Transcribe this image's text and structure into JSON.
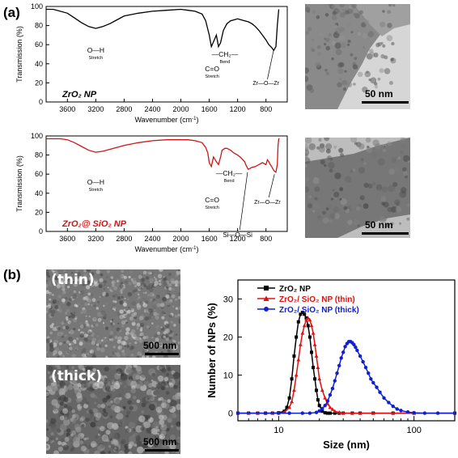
{
  "panels": {
    "a_label": "(a)",
    "b_label": "(b)"
  },
  "ftir_axis": {
    "xlabel": "Wavenumber (cm",
    "xlabel_sup": "-1",
    "xlabel_end": ")",
    "ylabel": "Transmission (%)",
    "xticks": [
      "3600",
      "3200",
      "2800",
      "2400",
      "2000",
      "1600",
      "1200",
      "800"
    ],
    "yticks": [
      "0",
      "20",
      "40",
      "60",
      "80",
      "100"
    ]
  },
  "chart_data": [
    {
      "type": "line",
      "panel": "a-top",
      "color": "#000000",
      "xlabel": "Wavenumber (cm-1)",
      "ylabel": "Transmission (%)",
      "xlim": [
        3900,
        500
      ],
      "ylim": [
        0,
        100
      ],
      "x": [
        3900,
        3800,
        3600,
        3500,
        3400,
        3300,
        3200,
        3100,
        3000,
        2900,
        2800,
        2600,
        2400,
        2200,
        2000,
        1900,
        1800,
        1700,
        1650,
        1600,
        1570,
        1540,
        1500,
        1470,
        1440,
        1400,
        1350,
        1300,
        1250,
        1200,
        1150,
        1100,
        1050,
        1000,
        950,
        900,
        850,
        800,
        760,
        720,
        690,
        660,
        640,
        620
      ],
      "y": [
        97,
        97,
        93,
        88,
        83,
        79,
        77,
        79,
        82,
        86,
        90,
        93,
        95,
        96,
        97,
        96,
        95,
        92,
        85,
        70,
        58,
        63,
        70,
        58,
        62,
        75,
        82,
        85,
        86,
        87,
        86,
        85,
        84,
        82,
        79,
        75,
        70,
        65,
        60,
        57,
        54,
        58,
        80,
        97
      ],
      "annotations": [
        {
          "text": "O—H",
          "sub": "Stretch"
        },
        {
          "text": "C=O",
          "sub": "Stretch"
        },
        {
          "text": "—CH₂—",
          "sub": "Bend"
        },
        {
          "text": "Zr—O—Zr"
        }
      ],
      "legend_html": "ZrO₂ NP"
    },
    {
      "type": "line",
      "panel": "a-bottom",
      "color": "#d01515",
      "xlabel": "Wavenumber (cm-1)",
      "ylabel": "Transmission (%)",
      "xlim": [
        3900,
        500
      ],
      "ylim": [
        0,
        100
      ],
      "x": [
        3900,
        3800,
        3700,
        3600,
        3500,
        3400,
        3300,
        3200,
        3100,
        3000,
        2800,
        2600,
        2400,
        2200,
        2000,
        1900,
        1800,
        1700,
        1650,
        1620,
        1600,
        1570,
        1540,
        1500,
        1470,
        1440,
        1420,
        1380,
        1350,
        1300,
        1250,
        1200,
        1150,
        1100,
        1080,
        1050,
        1000,
        950,
        900,
        850,
        800,
        780,
        760,
        740,
        720,
        700,
        680,
        660,
        640,
        630,
        620,
        610
      ],
      "y": [
        97,
        97,
        97,
        96,
        93,
        89,
        85,
        83,
        84,
        86,
        90,
        93,
        95,
        96,
        96,
        96,
        95,
        93,
        88,
        82,
        72,
        68,
        78,
        73,
        70,
        78,
        85,
        87,
        87,
        85,
        82,
        80,
        77,
        73,
        69,
        65,
        67,
        68,
        70,
        72,
        70,
        75,
        73,
        70,
        68,
        65,
        63,
        62,
        70,
        90,
        97,
        97
      ],
      "annotations": [
        {
          "text": "O—H",
          "sub": "Stretch"
        },
        {
          "text": "C=O",
          "sub": "Stretch"
        },
        {
          "text": "—CH₂—",
          "sub": "Bend"
        },
        {
          "text": "Si—O—Si"
        },
        {
          "text": "Zr—O—Zr"
        }
      ],
      "legend_html": "ZrO₂@ SiO₂ NP"
    },
    {
      "type": "line",
      "panel": "b-right",
      "xlabel": "Size (nm)",
      "ylabel": "Number of NPs (%)",
      "xscale": "log",
      "xlim": [
        5,
        200
      ],
      "ylim": [
        -2,
        35
      ],
      "yticks": [
        0,
        10,
        20,
        30
      ],
      "xticks": [
        10,
        100
      ],
      "series": [
        {
          "name": "ZrO₂ NP",
          "color": "#000000",
          "marker": "square",
          "x": [
            5,
            6,
            7,
            8,
            9,
            10,
            11,
            11.5,
            12,
            12.5,
            13,
            13.5,
            14,
            14.5,
            15,
            15.5,
            16,
            16.5,
            17,
            17.5,
            18,
            18.5,
            19,
            19.5,
            20,
            21,
            22,
            23,
            24,
            26,
            28,
            30,
            35,
            40,
            50,
            70,
            100,
            200
          ],
          "y": [
            0,
            0,
            0,
            0,
            0,
            0.1,
            0.5,
            1.5,
            4,
            9,
            15,
            20,
            24,
            26,
            26.5,
            26,
            25,
            23,
            20,
            16,
            12,
            9,
            6,
            3.5,
            2,
            0.5,
            0.1,
            0,
            0,
            0,
            0,
            0,
            0,
            0,
            0,
            0,
            0,
            0
          ]
        },
        {
          "name": "ZrO₂/ SiO₂ NP (thin)",
          "color": "#e01010",
          "marker": "triangle",
          "x": [
            5,
            6,
            7,
            8,
            9,
            10,
            11,
            12,
            12.5,
            13,
            13.5,
            14,
            14.5,
            15,
            15.5,
            16,
            16.5,
            17,
            17.5,
            18,
            18.5,
            19,
            19.5,
            20,
            21,
            22,
            23,
            24,
            25,
            26,
            28,
            30,
            35,
            40,
            50,
            70,
            100,
            200
          ],
          "y": [
            0,
            0,
            0,
            0,
            0,
            0,
            0.2,
            1.5,
            3,
            6,
            10,
            14,
            18,
            21,
            23,
            24.5,
            25,
            24.5,
            23,
            21,
            18,
            15,
            12,
            9,
            6,
            4,
            2.5,
            1.5,
            1,
            0.5,
            0.2,
            0,
            0,
            0,
            0,
            0,
            0,
            0
          ]
        },
        {
          "name": "ZrO₂/ SiO₂ NP (thick)",
          "color": "#1020d0",
          "marker": "circle",
          "x": [
            5,
            8,
            10,
            12,
            15,
            17,
            19,
            20,
            21,
            22,
            23,
            24,
            25,
            26,
            27,
            28,
            29,
            30,
            31,
            32,
            33,
            34,
            35,
            36,
            37,
            38,
            40,
            42,
            44,
            46,
            48,
            50,
            53,
            56,
            60,
            65,
            70,
            75,
            80,
            90,
            100,
            120,
            150,
            200
          ],
          "y": [
            0,
            0,
            0,
            0,
            0,
            0,
            0.2,
            0.6,
            1.2,
            2,
            3.2,
            4.8,
            6.5,
            8.5,
            10.5,
            12.5,
            14.5,
            16,
            17.5,
            18.3,
            18.8,
            18.8,
            18.5,
            18,
            17.3,
            16.5,
            15,
            13.5,
            12,
            10.5,
            9,
            8,
            6.8,
            5.5,
            4,
            2.8,
            1.8,
            1.1,
            0.7,
            0.3,
            0.1,
            0,
            0,
            0
          ]
        }
      ]
    }
  ],
  "images": {
    "tem_top_scale": "50 nm",
    "tem_bottom_scale": "50 nm",
    "sem_thin_label": "(thin)",
    "sem_thick_label": "(thick)",
    "sem_thin_scale": "500 nm",
    "sem_thick_scale": "500 nm"
  },
  "size_axis": {
    "xlabel": "Size (nm)",
    "ylabel": "Number of NPs (%)"
  }
}
